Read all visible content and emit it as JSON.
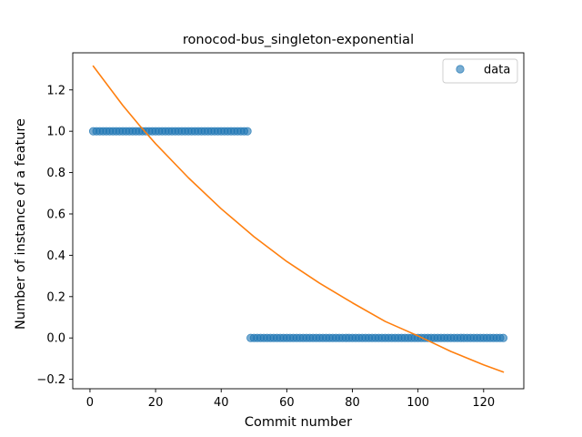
{
  "chart_data": {
    "type": "scatter",
    "title": "ronocod-bus_singleton-exponential",
    "xlabel": "Commit number",
    "ylabel": "Number of instance of a feature",
    "xlim": [
      -5.25,
      132.25
    ],
    "ylim": [
      -0.2457,
      1.3795
    ],
    "xticks": [
      0,
      20,
      40,
      60,
      80,
      100,
      120
    ],
    "yticks": [
      -0.2,
      0.0,
      0.2,
      0.4,
      0.6,
      0.8,
      1.0,
      1.2
    ],
    "xtick_labels": [
      "0",
      "20",
      "40",
      "60",
      "80",
      "100",
      "120"
    ],
    "ytick_labels": [
      "−0.2",
      "0.0",
      "0.2",
      "0.4",
      "0.6",
      "0.8",
      "1.0",
      "1.2"
    ],
    "grid": false,
    "legend": {
      "position": "upper right",
      "entries": [
        "data"
      ]
    },
    "series": [
      {
        "name": "data",
        "kind": "scatter",
        "color": "#1f77b4",
        "alpha": 0.6,
        "segments": [
          {
            "x_start": 1,
            "x_end": 48,
            "y": 1
          },
          {
            "x_start": 49,
            "x_end": 126,
            "y": 0
          }
        ]
      },
      {
        "kind": "line",
        "color": "#ff7f0e",
        "model": "exponential",
        "x_range": [
          1,
          126
        ],
        "points": [
          [
            1,
            1.315
          ],
          [
            10,
            1.125
          ],
          [
            15,
            1.03
          ],
          [
            20,
            0.94
          ],
          [
            30,
            0.775
          ],
          [
            40,
            0.625
          ],
          [
            50,
            0.49
          ],
          [
            60,
            0.37
          ],
          [
            70,
            0.265
          ],
          [
            80,
            0.17
          ],
          [
            90,
            0.08
          ],
          [
            100,
            0.01
          ],
          [
            110,
            -0.065
          ],
          [
            120,
            -0.13
          ],
          [
            126,
            -0.165
          ]
        ]
      }
    ]
  }
}
